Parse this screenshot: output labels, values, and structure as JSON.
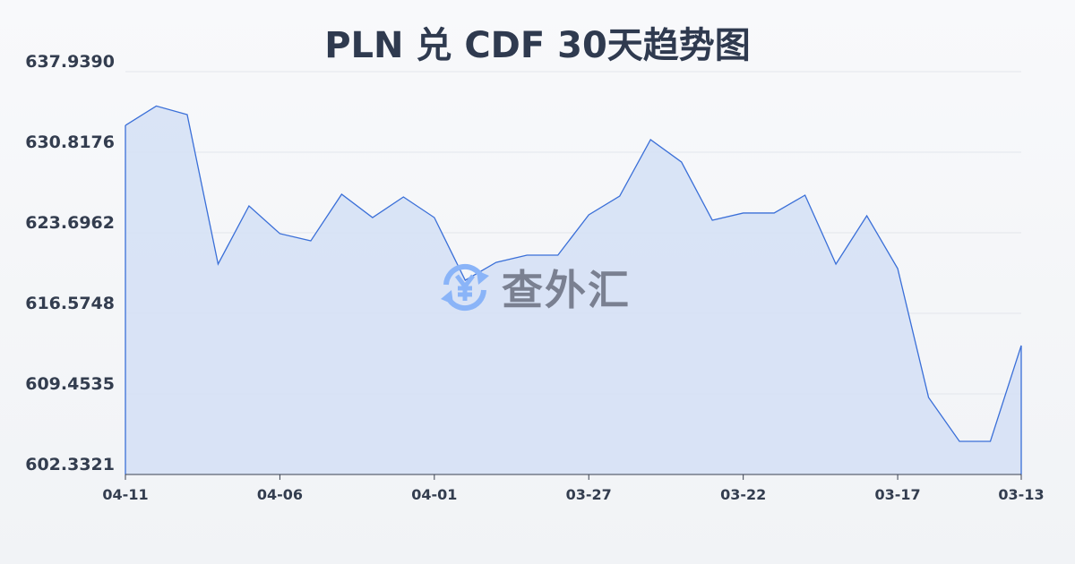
{
  "chart_data": {
    "type": "area",
    "title": "PLN 兑 CDF 30天趋势图",
    "xlabel": "",
    "ylabel": "",
    "categories": [
      "04-11",
      "04-10",
      "04-09",
      "04-08",
      "04-07",
      "04-06",
      "04-05",
      "04-04",
      "04-03",
      "04-02",
      "04-01",
      "03-31",
      "03-30",
      "03-29",
      "03-28",
      "03-27",
      "03-26",
      "03-25",
      "03-24",
      "03-23",
      "03-22",
      "03-21",
      "03-20",
      "03-19",
      "03-18",
      "03-17",
      "03-16",
      "03-15",
      "03-14",
      "03-13"
    ],
    "x_tick_labels": [
      "04-11",
      "04-06",
      "04-01",
      "03-27",
      "03-22",
      "03-17",
      "03-13"
    ],
    "y_tick_labels": [
      "637.9390",
      "630.8176",
      "623.6962",
      "616.5748",
      "609.4535",
      "602.3321"
    ],
    "ylim": [
      602.3321,
      637.939
    ],
    "grid": true,
    "values": [
      633.19,
      634.9,
      634.14,
      620.93,
      626.07,
      623.62,
      622.98,
      627.1,
      625.04,
      626.86,
      625.04,
      619.5,
      621.08,
      621.72,
      621.72,
      625.28,
      626.94,
      631.93,
      629.95,
      624.8,
      625.44,
      625.44,
      627.02,
      620.93,
      625.2,
      620.53,
      609.14,
      605.26,
      605.26,
      613.73
    ],
    "colors": {
      "line": "#3a6fd8",
      "fill": "#d6e1f5",
      "grid": "#e3e6ec"
    }
  },
  "watermark": {
    "text": "查外汇",
    "icon": "yuen-exchange-icon"
  }
}
